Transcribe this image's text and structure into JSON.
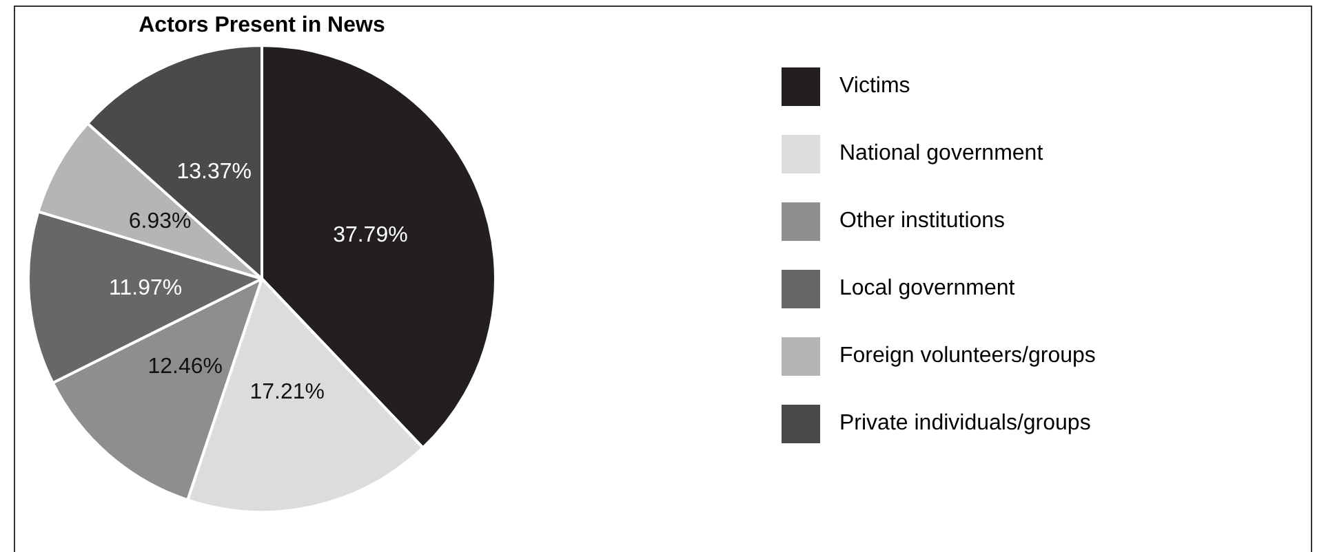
{
  "chart_data": {
    "type": "pie",
    "title": "Actors Present in News",
    "categories": [
      "Victims",
      "National government",
      "Other institutions",
      "Local government",
      "Foreign volunteers/groups",
      "Private individuals/groups"
    ],
    "values": [
      37.79,
      17.21,
      12.46,
      11.97,
      6.93,
      13.37
    ],
    "colors": [
      "#231f20",
      "#dcdcdd",
      "#8e8e90",
      "#67676a",
      "#b5b5b7",
      "#4a4a4c"
    ],
    "value_labels": [
      "37.79%",
      "17.21%",
      "12.46%",
      "11.97%",
      "6.93%",
      "13.37%"
    ],
    "legend": "right"
  }
}
